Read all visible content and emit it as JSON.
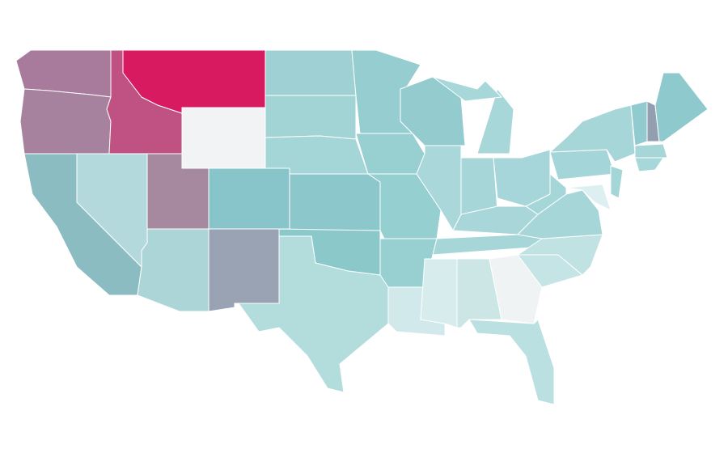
{
  "map": {
    "regions": [
      {
        "color": "#a87a9c"
      },
      {
        "color": "#a6829f"
      },
      {
        "color": "#bf5283"
      },
      {
        "color": "#d81b60"
      },
      {
        "color": "#f2f3f5"
      },
      {
        "color": "#8bbcc2"
      },
      {
        "color": "#b3d9dc"
      },
      {
        "color": "#a6889f"
      },
      {
        "color": "#acd5d8"
      },
      {
        "color": "#88c5cb"
      },
      {
        "color": "#99a3b3"
      },
      {
        "color": "#9fd0d3"
      },
      {
        "color": "#a2d4d6"
      },
      {
        "color": "#a4d5d7"
      },
      {
        "color": "#8cc7cb"
      },
      {
        "color": "#8bc8ca"
      },
      {
        "color": "#b3dcdd"
      },
      {
        "color": "#96cdd0"
      },
      {
        "color": "#98cfd1"
      },
      {
        "color": "#96cfd0"
      },
      {
        "color": "#98d0d2"
      },
      {
        "color": "#d1e9ea"
      },
      {
        "color": "#93cbcf"
      },
      {
        "color": "#aad8da"
      },
      {
        "color": "#a8d7d9"
      },
      {
        "color": "#a8d7d9"
      },
      {
        "color": "#a6d6d8"
      },
      {
        "color": "#a6d6d9"
      },
      {
        "color": "#a9d7d9"
      },
      {
        "color": "#a7d6d8"
      },
      {
        "color": "#d7ecec"
      },
      {
        "color": "#cce6e6"
      },
      {
        "color": "#f0f3f3"
      },
      {
        "color": "#bbe0e2"
      },
      {
        "color": "#c4e4e5"
      },
      {
        "color": "#c0e2e3"
      },
      {
        "color": "#a6d6d8"
      },
      {
        "color": "#a6d7d8"
      },
      {
        "color": "#a4d5d8"
      },
      {
        "color": "#a6d6d8"
      },
      {
        "color": "#92cbcf"
      },
      {
        "color": "#939fb0"
      },
      {
        "color": "#8ecacd"
      },
      {
        "color": "#a6d6d8"
      },
      {
        "color": "#a8d7d9"
      },
      {
        "color": "#a4d5d7"
      },
      {
        "color": "#ddeff0"
      }
    ]
  }
}
